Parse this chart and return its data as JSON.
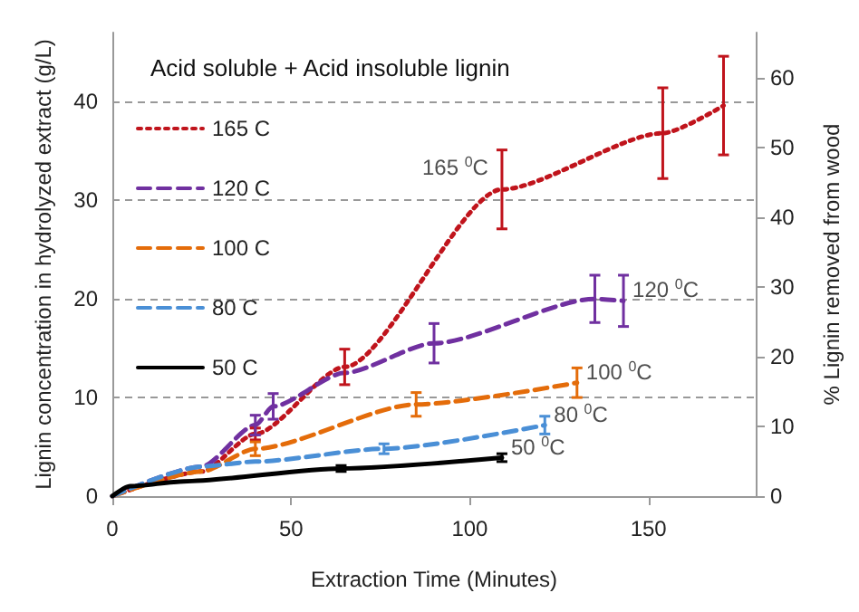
{
  "chart_data": {
    "type": "line",
    "title": "Acid soluble + Acid insoluble lignin",
    "xlabel": "Extraction Time (Minutes)",
    "ylabel": "Lignin concentration in hydrolyzed extract (g/L)",
    "y2label": "% Lignin removed from wood",
    "xlim": [
      0,
      180
    ],
    "xticks": [
      0,
      50,
      100,
      150
    ],
    "ylim": [
      0,
      47
    ],
    "yticks": [
      0,
      10,
      20,
      30,
      40
    ],
    "y2lim": [
      0,
      66.5
    ],
    "y2ticks": [
      0,
      10,
      20,
      30,
      40,
      50,
      60
    ],
    "grid": "y",
    "legend": "top left",
    "marker": "none",
    "series": [
      {
        "name": "165 C",
        "color": "#c0141c",
        "line_style": "dotted",
        "x": [
          0,
          25,
          40,
          65,
          109,
          154,
          171
        ],
        "values": [
          0,
          2.5,
          6.3,
          13.1,
          31.1,
          36.8,
          39.6
        ],
        "errors": [
          null,
          null,
          0.6,
          1.8,
          4,
          4.6,
          5
        ]
      },
      {
        "name": "120 C",
        "color": "#7030a0",
        "line_style": "dashed",
        "x": [
          0,
          25,
          40,
          45,
          65,
          90,
          135,
          143
        ],
        "values": [
          0,
          3,
          7.2,
          9.1,
          12.5,
          15.5,
          20,
          19.8
        ],
        "errors": [
          null,
          null,
          1,
          1.3,
          null,
          2,
          2.4,
          2.6
        ]
      },
      {
        "name": "100 C",
        "color": "#e46c0a",
        "line_style": "dashed",
        "x": [
          0,
          25,
          40,
          85,
          130
        ],
        "values": [
          0,
          2.5,
          4.8,
          9.3,
          11.5
        ],
        "errors": [
          null,
          null,
          0.7,
          1.2,
          1.5
        ]
      },
      {
        "name": "80 C",
        "color": "#4a8fd6",
        "line_style": "dashed",
        "x": [
          0,
          25,
          40,
          76,
          121
        ],
        "values": [
          0,
          3,
          3.5,
          4.8,
          7.2
        ],
        "errors": [
          null,
          null,
          null,
          0.5,
          0.9
        ]
      },
      {
        "name": "50 C",
        "color": "#000000",
        "line_style": "solid",
        "x": [
          0,
          5,
          20,
          64,
          109
        ],
        "values": [
          0,
          1,
          1.5,
          2.8,
          3.9
        ],
        "errors": [
          null,
          null,
          null,
          0.3,
          0.4
        ]
      }
    ],
    "annotations": [
      {
        "text": "165 $^{0}$C",
        "x": 109,
        "y": 31.1
      },
      {
        "text": "120 $^{0}$C",
        "x": 143,
        "y": 19.8
      },
      {
        "text": "100 $^{0}$C",
        "x": 130,
        "y": 11.5
      },
      {
        "text": "80 $^{0}$C",
        "x": 121,
        "y": 7.2
      },
      {
        "text": "50 $^{0}$C",
        "x": 109,
        "y": 3.9
      }
    ]
  }
}
